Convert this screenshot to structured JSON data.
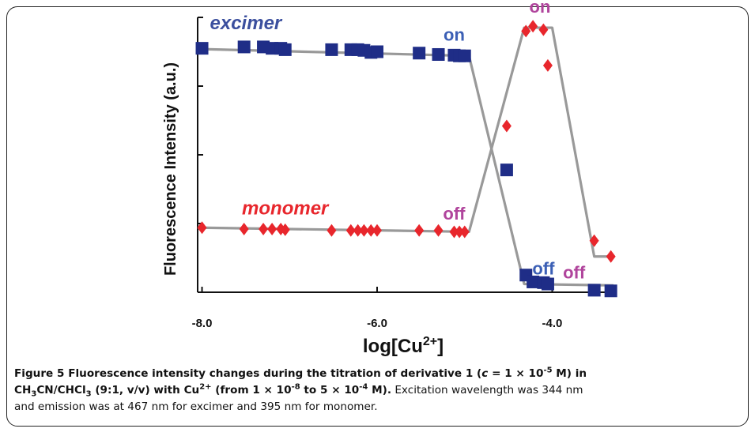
{
  "chart_data": {
    "type": "scatter",
    "xlabel": "log[Cu²⁺]",
    "ylabel": "Fluorescence Intensity (a.u.)",
    "xlim": [
      -8.05,
      -3.3
    ],
    "ylim": [
      0,
      4
    ],
    "x_ticks": [
      {
        "value": -8.0,
        "label": "-8.0"
      },
      {
        "value": -6.0,
        "label": "-6.0"
      },
      {
        "value": -4.0,
        "label": "-4.0"
      }
    ],
    "y_ticks": [
      0,
      1,
      2,
      3,
      4
    ],
    "colors": {
      "excimer": "#1f2d87",
      "monomer": "#e8262c",
      "fit": "#999999",
      "on_off_blue": "#3b5fb5",
      "on_off_pink": "#b0449c"
    },
    "series": [
      {
        "name": "excimer",
        "marker": "square",
        "points": [
          [
            -8.0,
            3.55
          ],
          [
            -7.52,
            3.57
          ],
          [
            -7.3,
            3.57
          ],
          [
            -7.2,
            3.55
          ],
          [
            -7.1,
            3.55
          ],
          [
            -7.05,
            3.53
          ],
          [
            -6.52,
            3.53
          ],
          [
            -6.3,
            3.53
          ],
          [
            -6.22,
            3.53
          ],
          [
            -6.15,
            3.52
          ],
          [
            -6.07,
            3.49
          ],
          [
            -6.0,
            3.5
          ],
          [
            -5.52,
            3.48
          ],
          [
            -5.3,
            3.46
          ],
          [
            -5.12,
            3.45
          ],
          [
            -5.06,
            3.44
          ],
          [
            -5.0,
            3.44
          ],
          [
            -4.52,
            1.78
          ],
          [
            -4.3,
            0.25
          ],
          [
            -4.22,
            0.15
          ],
          [
            -4.1,
            0.14
          ],
          [
            -4.05,
            0.12
          ],
          [
            -3.52,
            0.03
          ],
          [
            -3.33,
            0.02
          ]
        ]
      },
      {
        "name": "monomer",
        "marker": "diamond",
        "points": [
          [
            -8.0,
            0.94
          ],
          [
            -7.52,
            0.92
          ],
          [
            -7.3,
            0.92
          ],
          [
            -7.2,
            0.92
          ],
          [
            -7.1,
            0.92
          ],
          [
            -7.05,
            0.91
          ],
          [
            -6.52,
            0.9
          ],
          [
            -6.3,
            0.9
          ],
          [
            -6.22,
            0.9
          ],
          [
            -6.15,
            0.9
          ],
          [
            -6.07,
            0.9
          ],
          [
            -6.0,
            0.9
          ],
          [
            -5.52,
            0.9
          ],
          [
            -5.3,
            0.9
          ],
          [
            -5.12,
            0.88
          ],
          [
            -5.06,
            0.88
          ],
          [
            -5.0,
            0.88
          ],
          [
            -4.52,
            2.42
          ],
          [
            -4.3,
            3.8
          ],
          [
            -4.22,
            3.87
          ],
          [
            -4.1,
            3.82
          ],
          [
            -4.05,
            3.3
          ],
          [
            -3.52,
            0.75
          ],
          [
            -3.33,
            0.52
          ]
        ]
      }
    ],
    "fit_lines": [
      {
        "name": "excimer-fit",
        "points": [
          [
            -8.05,
            3.54
          ],
          [
            -4.95,
            3.44
          ],
          [
            -4.32,
            0.12
          ],
          [
            -3.3,
            0.1
          ]
        ]
      },
      {
        "name": "monomer-fit",
        "points": [
          [
            -8.05,
            0.94
          ],
          [
            -4.95,
            0.88
          ],
          [
            -4.32,
            3.85
          ],
          [
            -4.0,
            3.85
          ],
          [
            -3.52,
            0.52
          ],
          [
            -3.3,
            0.52
          ]
        ]
      }
    ],
    "annotations": [
      {
        "text": "excimer",
        "style": "series",
        "color": "#3b4f9e",
        "x": -7.5,
        "y": 3.83
      },
      {
        "text": "monomer",
        "style": "series",
        "color": "#e8262c",
        "x": -7.05,
        "y": 1.13
      },
      {
        "text": "on",
        "color": "#3b5fb5",
        "x": -5.12,
        "y": 3.66
      },
      {
        "text": "off",
        "color": "#b0449c",
        "x": -5.12,
        "y": 1.06
      },
      {
        "text": "on",
        "color": "#b0449c",
        "x": -4.14,
        "y": 4.07
      },
      {
        "text": "off",
        "color": "#3b5fb5",
        "x": -4.1,
        "y": 0.26
      },
      {
        "text": "off",
        "color": "#b0449c",
        "x": -3.75,
        "y": 0.2
      }
    ]
  },
  "caption": {
    "fig_label": "Figure 5",
    "title_a": " Fluorescence intensity changes during the titration of derivative 1 (",
    "c_var": "c",
    "title_b": " = 1 × 10",
    "exp1": "-5",
    "title_c": " M) in",
    "line2_a": "CH",
    "sub3a": "3",
    "line2_b": "CN/CHCl",
    "sub3b": "3",
    "line2_c": " (9:1, v/v) with Cu",
    "sup2": "2+",
    "line2_d": " (from 1 × 10",
    "exp2": "-8",
    "line2_e": " to 5 × 10",
    "exp3": "-4",
    "line2_f": " M).",
    "body": " Excitation wavelength was 344 nm",
    "line3": "and emission was at 467 nm for excimer and 395 nm for monomer."
  }
}
